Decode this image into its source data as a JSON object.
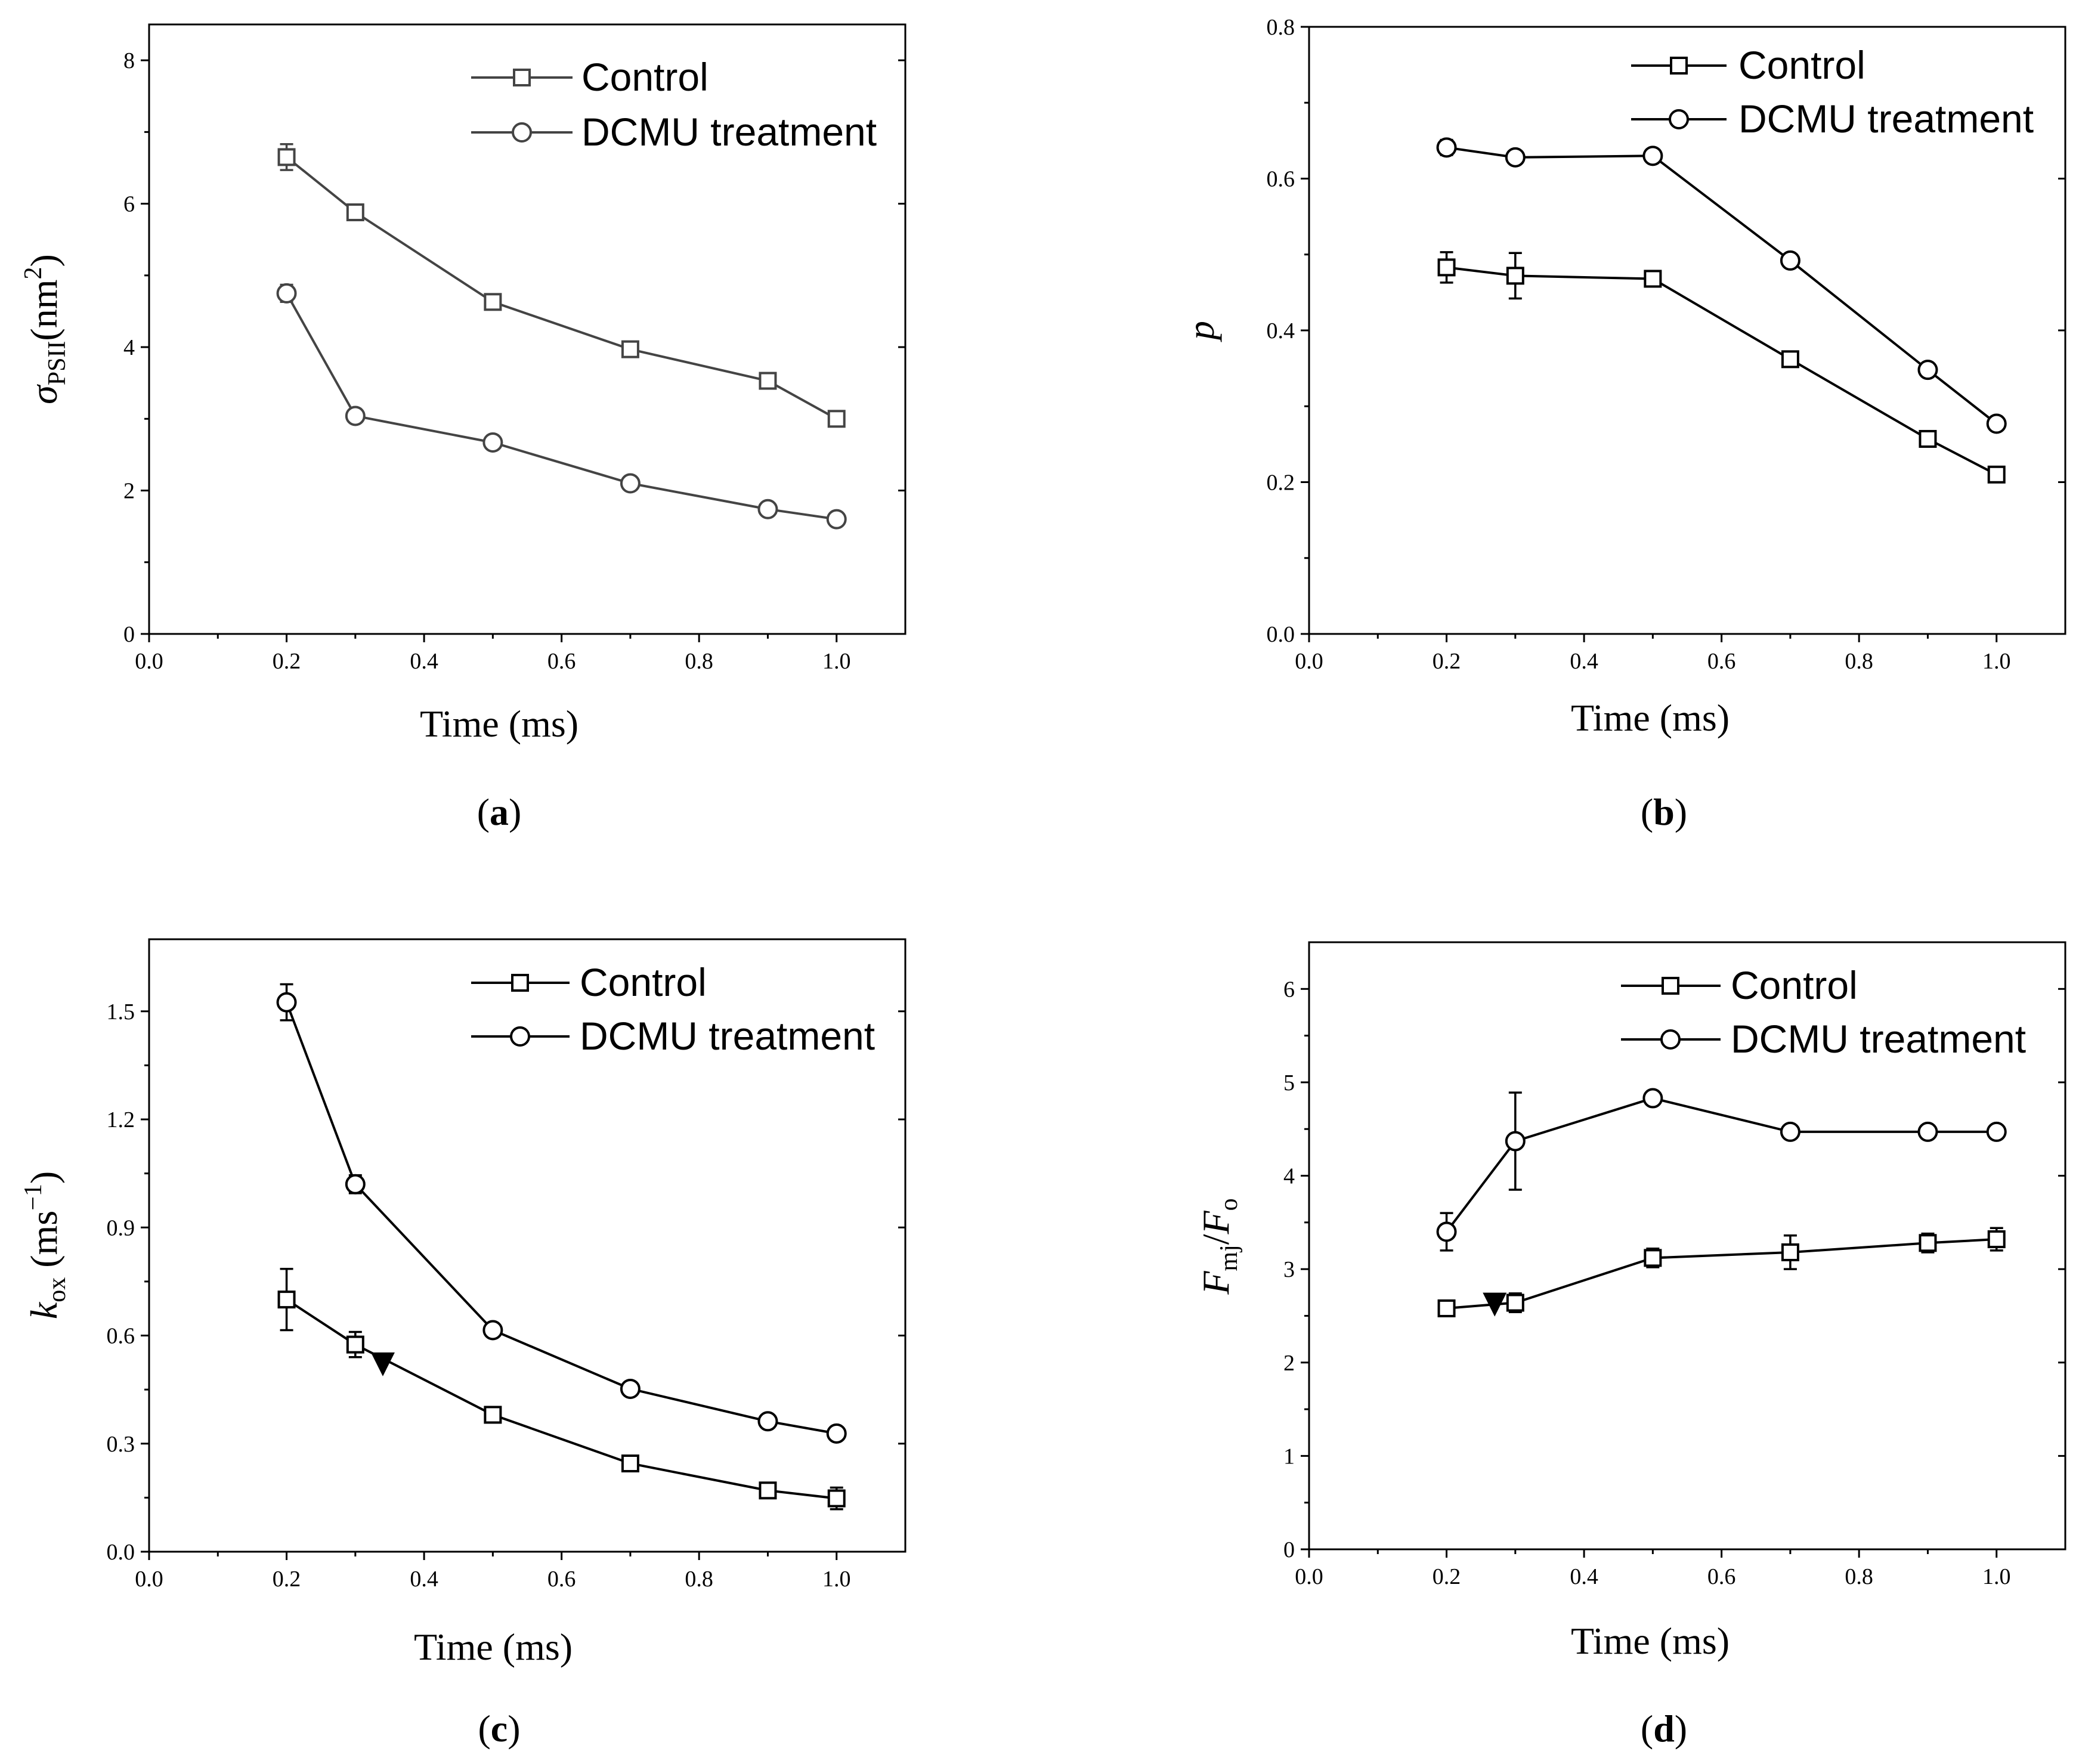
{
  "figure": {
    "panels": [
      {
        "id": "a",
        "tag_open": "(",
        "tag_letter": "a",
        "tag_close": ")",
        "ylabel_symbol": "σ",
        "ylabel_sub": "PSII",
        "ylabel_rest": "(nm",
        "ylabel_sup": "2",
        "ylabel_close": ")",
        "xlabel": "Time (ms)",
        "color": "#444444"
      },
      {
        "id": "b",
        "tag_open": "(",
        "tag_letter": "b",
        "tag_close": ")",
        "ylabel_symbol": "p",
        "xlabel": "Time (ms)",
        "color": "#000000"
      },
      {
        "id": "c",
        "tag_open": "(",
        "tag_letter": "c",
        "tag_close": ")",
        "ylabel_symbol": "k",
        "ylabel_sub": "ox",
        "ylabel_rest": " (ms",
        "ylabel_sup": "−1",
        "ylabel_close": ")",
        "xlabel": "Time (ms)",
        "color": "#000000"
      },
      {
        "id": "d",
        "tag_open": "(",
        "tag_letter": "d",
        "tag_close": ")",
        "ylabel_symbol": "F",
        "ylabel_sub": "mj",
        "ylabel_mid": "/",
        "ylabel_symbol2": "F",
        "ylabel_sub2": "o",
        "xlabel": "Time (ms)",
        "color": "#000000"
      }
    ]
  },
  "chart_data": [
    {
      "panel": "a",
      "type": "line",
      "title": "",
      "xlabel": "Time (ms)",
      "ylabel": "σPSII(nm2)",
      "xlim": [
        0.0,
        1.1
      ],
      "ylim": [
        0,
        8.5
      ],
      "xticks": [
        0.0,
        0.2,
        0.4,
        0.6,
        0.8,
        1.0
      ],
      "xtick_labels": [
        "0.0",
        "0.2",
        "0.4",
        "0.6",
        "0.8",
        "1.0"
      ],
      "yticks": [
        0,
        2,
        4,
        6,
        8
      ],
      "ytick_labels": [
        "0",
        "2",
        "4",
        "6",
        "8"
      ],
      "x": [
        0.2,
        0.3,
        0.5,
        0.7,
        0.9,
        1.0
      ],
      "series": [
        {
          "name": "Control",
          "marker": "square",
          "values": [
            6.65,
            5.88,
            4.63,
            3.97,
            3.53,
            3.0
          ],
          "errors": [
            0.18,
            0.07,
            0.1,
            0.1,
            0.1,
            0.1
          ]
        },
        {
          "name": "DCMU treatment",
          "marker": "circle",
          "values": [
            4.75,
            3.04,
            2.67,
            2.1,
            1.74,
            1.6
          ],
          "errors": [
            0.12,
            0.08,
            0.08,
            0.08,
            0.07,
            0.06
          ]
        }
      ],
      "legend_position": "top-right",
      "annotations": []
    },
    {
      "panel": "b",
      "type": "line",
      "title": "",
      "xlabel": "Time (ms)",
      "ylabel": "p",
      "xlim": [
        0.0,
        1.1
      ],
      "ylim": [
        0.0,
        0.8
      ],
      "xticks": [
        0.0,
        0.2,
        0.4,
        0.6,
        0.8,
        1.0
      ],
      "xtick_labels": [
        "0.0",
        "0.2",
        "0.4",
        "0.6",
        "0.8",
        "1.0"
      ],
      "yticks": [
        0.0,
        0.2,
        0.4,
        0.6,
        0.8
      ],
      "ytick_labels": [
        "0.0",
        "0.2",
        "0.4",
        "0.6",
        "0.8"
      ],
      "x": [
        0.2,
        0.3,
        0.5,
        0.7,
        0.9,
        1.0
      ],
      "series": [
        {
          "name": "Control",
          "marker": "square",
          "values": [
            0.483,
            0.472,
            0.468,
            0.362,
            0.257,
            0.21
          ],
          "errors": [
            0.02,
            0.03,
            0.008,
            0.008,
            0.008,
            0.008
          ]
        },
        {
          "name": "DCMU treatment",
          "marker": "circle",
          "values": [
            0.641,
            0.628,
            0.63,
            0.492,
            0.348,
            0.277
          ],
          "errors": [
            0.01,
            0.008,
            0.008,
            0.008,
            0.008,
            0.008
          ]
        }
      ],
      "legend_position": "top-right",
      "annotations": []
    },
    {
      "panel": "c",
      "type": "line",
      "title": "",
      "xlabel": "Time (ms)",
      "ylabel": "kox (ms−1)",
      "xlim": [
        0.0,
        1.1
      ],
      "ylim": [
        0.0,
        1.7
      ],
      "xticks": [
        0.0,
        0.2,
        0.4,
        0.6,
        0.8,
        1.0
      ],
      "xtick_labels": [
        "0.0",
        "0.2",
        "0.4",
        "0.6",
        "0.8",
        "1.0"
      ],
      "yticks": [
        0.0,
        0.3,
        0.6,
        0.9,
        1.2,
        1.5
      ],
      "ytick_labels": [
        "0.0",
        "0.3",
        "0.6",
        "0.9",
        "1.2",
        "1.5"
      ],
      "x": [
        0.2,
        0.3,
        0.5,
        0.7,
        0.9,
        1.0
      ],
      "series": [
        {
          "name": "Control",
          "marker": "square",
          "values": [
            0.7,
            0.575,
            0.38,
            0.245,
            0.17,
            0.148
          ],
          "errors": [
            0.085,
            0.035,
            0.015,
            0.015,
            0.015,
            0.03
          ]
        },
        {
          "name": "DCMU treatment",
          "marker": "circle",
          "values": [
            1.525,
            1.02,
            0.615,
            0.452,
            0.362,
            0.328
          ],
          "errors": [
            0.05,
            0.025,
            0.015,
            0.015,
            0.015,
            0.015
          ]
        }
      ],
      "legend_position": "top-right",
      "annotations": [
        {
          "type": "down-triangle",
          "x": 0.34,
          "y": 0.52
        }
      ]
    },
    {
      "panel": "d",
      "type": "line",
      "title": "",
      "xlabel": "Time (ms)",
      "ylabel": "Fmj/Fo",
      "xlim": [
        0.0,
        1.1
      ],
      "ylim": [
        0,
        6.5
      ],
      "xticks": [
        0.0,
        0.2,
        0.4,
        0.6,
        0.8,
        1.0
      ],
      "xtick_labels": [
        "0.0",
        "0.2",
        "0.4",
        "0.6",
        "0.8",
        "1.0"
      ],
      "yticks": [
        0,
        1,
        2,
        3,
        4,
        5,
        6
      ],
      "ytick_labels": [
        "0",
        "1",
        "2",
        "3",
        "4",
        "5",
        "6"
      ],
      "x": [
        0.2,
        0.3,
        0.5,
        0.7,
        0.9,
        1.0
      ],
      "series": [
        {
          "name": "Control",
          "marker": "square",
          "values": [
            2.58,
            2.64,
            3.12,
            3.18,
            3.28,
            3.32
          ],
          "errors": [
            0.05,
            0.1,
            0.1,
            0.18,
            0.1,
            0.12
          ]
        },
        {
          "name": "DCMU treatment",
          "marker": "circle",
          "values": [
            3.4,
            4.37,
            4.83,
            4.47,
            4.47,
            4.47
          ],
          "errors": [
            0.2,
            0.52,
            0.07,
            0.04,
            0.04,
            0.04
          ]
        }
      ],
      "legend_position": "top-right",
      "annotations": [
        {
          "type": "down-triangle",
          "x": 0.27,
          "y": 2.62
        }
      ]
    }
  ]
}
